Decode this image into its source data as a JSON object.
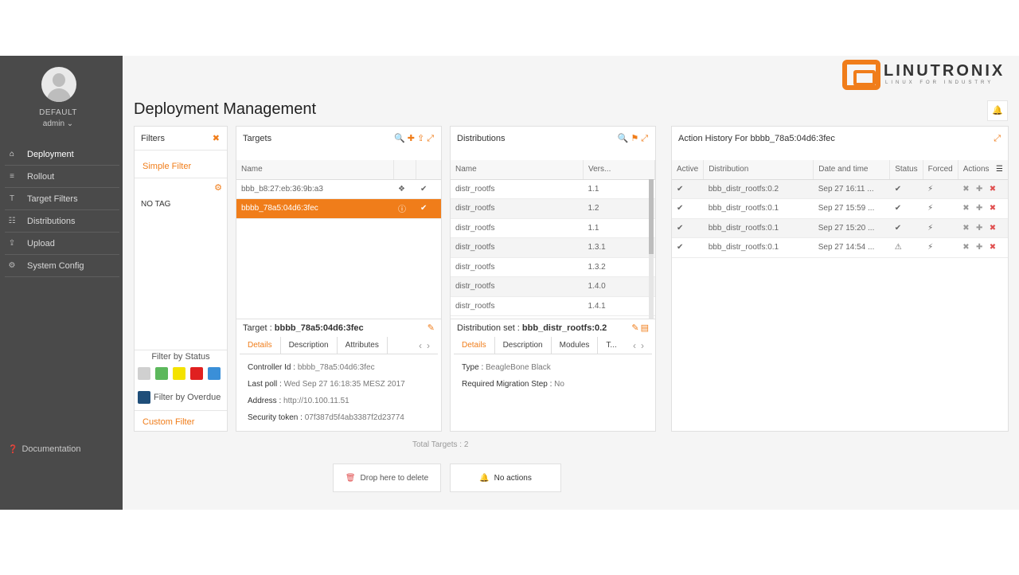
{
  "sidebar": {
    "tenant": "DEFAULT",
    "user": "admin ⌄",
    "items": [
      {
        "label": "Deployment",
        "icon": "⌂"
      },
      {
        "label": "Rollout",
        "icon": "≡"
      },
      {
        "label": "Target Filters",
        "icon": "T"
      },
      {
        "label": "Distributions",
        "icon": "☷"
      },
      {
        "label": "Upload",
        "icon": "⇪"
      },
      {
        "label": "System Config",
        "icon": "⚙"
      }
    ],
    "documentation": "Documentation"
  },
  "header": {
    "title": "Deployment Management",
    "logo_text": "LINUTRONIX",
    "logo_sub": "LINUX FOR INDUSTRY"
  },
  "filters": {
    "title": "Filters",
    "simple_filter": "Simple Filter",
    "no_tag": "NO TAG",
    "filter_by_status": "Filter by Status",
    "status_colors": [
      "#d0d0d0",
      "#5cb85c",
      "#f4e200",
      "#e02020",
      "#3a8fd8"
    ],
    "filter_by_overdue": "Filter by Overdue",
    "overdue_color": "#1f4e79",
    "custom_filter": "Custom Filter"
  },
  "targets": {
    "title": "Targets",
    "col_name": "Name",
    "rows": [
      {
        "name": "bbb_b8:27:eb:36:9b:a3",
        "selected": false
      },
      {
        "name": "bbbb_78a5:04d6:3fec",
        "selected": true
      }
    ]
  },
  "distributions": {
    "title": "Distributions",
    "col_name": "Name",
    "col_version": "Vers...",
    "rows": [
      {
        "name": "distr_rootfs",
        "version": "1.1"
      },
      {
        "name": "distr_rootfs",
        "version": "1.2"
      },
      {
        "name": "distr_rootfs",
        "version": "1.1"
      },
      {
        "name": "distr_rootfs",
        "version": "1.3.1"
      },
      {
        "name": "distr_rootfs",
        "version": "1.3.2"
      },
      {
        "name": "distr_rootfs",
        "version": "1.4.0"
      },
      {
        "name": "distr_rootfs",
        "version": "1.4.1"
      }
    ]
  },
  "history": {
    "title": "Action History For bbbb_78a5:04d6:3fec",
    "columns": [
      "Active",
      "Distribution",
      "Date and time",
      "Status",
      "Forced",
      "Actions"
    ],
    "rows": [
      {
        "distribution": "bbb_distr_rootfs:0.2",
        "date": "Sep 27 16:11 ...",
        "status": "ok"
      },
      {
        "distribution": "bbb_distr_rootfs:0.1",
        "date": "Sep 27 15:59 ...",
        "status": "ok"
      },
      {
        "distribution": "bbb_distr_rootfs:0.1",
        "date": "Sep 27 15:20 ...",
        "status": "ok"
      },
      {
        "distribution": "bbb_distr_rootfs:0.1",
        "date": "Sep 27 14:54 ...",
        "status": "error"
      }
    ]
  },
  "target_detail": {
    "label": "Target : ",
    "name": "bbbb_78a5:04d6:3fec",
    "tabs": [
      "Details",
      "Description",
      "Attributes"
    ],
    "fields": [
      {
        "k": "Controller Id : ",
        "v": "bbbb_78a5:04d6:3fec"
      },
      {
        "k": "Last poll : ",
        "v": "Wed Sep 27 16:18:35 MESZ 2017"
      },
      {
        "k": "Address : ",
        "v": "http://10.100.11.51"
      },
      {
        "k": "Security token : ",
        "v": "07f387d5f4ab3387f2d23774"
      }
    ]
  },
  "dist_detail": {
    "label": "Distribution set : ",
    "name": "bbb_distr_rootfs:0.2",
    "tabs": [
      "Details",
      "Description",
      "Modules",
      "T..."
    ],
    "fields": [
      {
        "k": "Type : ",
        "v": "BeagleBone Black"
      },
      {
        "k": "Required Migration Step : ",
        "v": "No"
      }
    ]
  },
  "footer": {
    "total": "Total Targets : 2",
    "drop": "Drop here to delete",
    "actions": "No actions"
  }
}
